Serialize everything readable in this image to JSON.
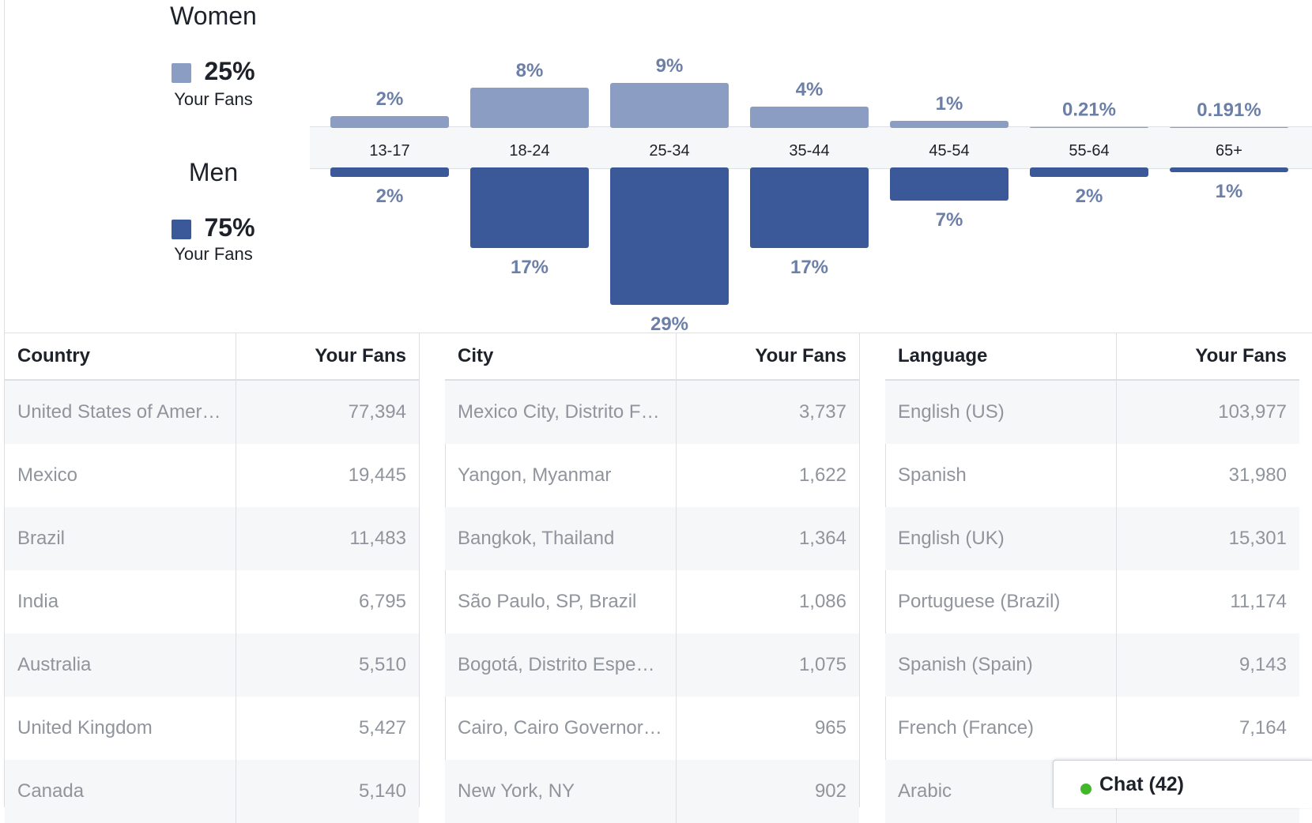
{
  "legend": {
    "women": {
      "title": "Women",
      "percent": "25%",
      "sub": "Your Fans",
      "color": "#8b9dc3"
    },
    "men": {
      "title": "Men",
      "percent": "75%",
      "sub": "Your Fans",
      "color": "#3b5998"
    }
  },
  "chart_data": {
    "type": "bar",
    "categories": [
      "13-17",
      "18-24",
      "25-34",
      "35-44",
      "45-54",
      "55-64",
      "65+"
    ],
    "series": [
      {
        "name": "Women",
        "values": [
          2,
          8,
          9,
          4,
          1,
          0.21,
          0.191
        ],
        "labels": [
          "2%",
          "8%",
          "9%",
          "4%",
          "1%",
          "0.21%",
          "0.191%"
        ],
        "color": "#8b9dc3"
      },
      {
        "name": "Men",
        "values": [
          2,
          17,
          29,
          17,
          7,
          2,
          1
        ],
        "labels": [
          "2%",
          "17%",
          "29%",
          "17%",
          "7%",
          "2%",
          "1%"
        ],
        "color": "#3b5998"
      }
    ],
    "label_color": "#6b7fa8"
  },
  "tables": [
    {
      "header": {
        "name": "Country",
        "value": "Your Fans"
      },
      "rows": [
        {
          "name": "United States of America",
          "value": "77,394"
        },
        {
          "name": "Mexico",
          "value": "19,445"
        },
        {
          "name": "Brazil",
          "value": "11,483"
        },
        {
          "name": "India",
          "value": "6,795"
        },
        {
          "name": "Australia",
          "value": "5,510"
        },
        {
          "name": "United Kingdom",
          "value": "5,427"
        },
        {
          "name": "Canada",
          "value": "5,140"
        }
      ]
    },
    {
      "header": {
        "name": "City",
        "value": "Your Fans"
      },
      "rows": [
        {
          "name": "Mexico City, Distrito Fe…",
          "value": "3,737"
        },
        {
          "name": "Yangon, Myanmar",
          "value": "1,622"
        },
        {
          "name": "Bangkok, Thailand",
          "value": "1,364"
        },
        {
          "name": "São Paulo, SP, Brazil",
          "value": "1,086"
        },
        {
          "name": "Bogotá, Distrito Especi…",
          "value": "1,075"
        },
        {
          "name": "Cairo, Cairo Governora…",
          "value": "965"
        },
        {
          "name": "New York, NY",
          "value": "902"
        }
      ]
    },
    {
      "header": {
        "name": "Language",
        "value": "Your Fans"
      },
      "rows": [
        {
          "name": "English (US)",
          "value": "103,977"
        },
        {
          "name": "Spanish",
          "value": "31,980"
        },
        {
          "name": "English (UK)",
          "value": "15,301"
        },
        {
          "name": "Portuguese (Brazil)",
          "value": "11,174"
        },
        {
          "name": "Spanish (Spain)",
          "value": "9,143"
        },
        {
          "name": "French (France)",
          "value": "7,164"
        },
        {
          "name": "Arabic",
          "value": ""
        }
      ]
    }
  ],
  "chat": {
    "label": "Chat (42)",
    "status_color": "#42b72a"
  }
}
